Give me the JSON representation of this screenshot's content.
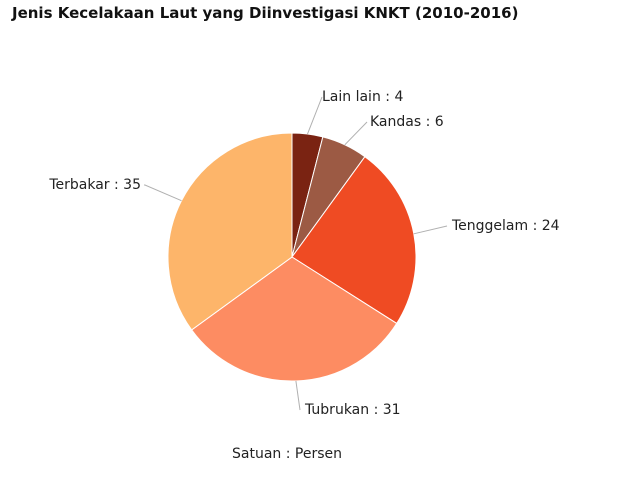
{
  "chart_data": {
    "type": "pie",
    "title": "Jenis Kecelakaan Laut yang Diinvestigasi KNKT (2010-2016)",
    "unit_note": "Satuan : Persen",
    "slices": [
      {
        "label": "Lain lain",
        "value": 4,
        "color": "#7a2312"
      },
      {
        "label": "Kandas",
        "value": 6,
        "color": "#9c5a44"
      },
      {
        "label": "Tenggelam",
        "value": 24,
        "color": "#ef4b23"
      },
      {
        "label": "Tubrukan",
        "value": 31,
        "color": "#fd8c62"
      },
      {
        "label": "Terbakar",
        "value": 35,
        "color": "#fdb56a"
      }
    ]
  }
}
